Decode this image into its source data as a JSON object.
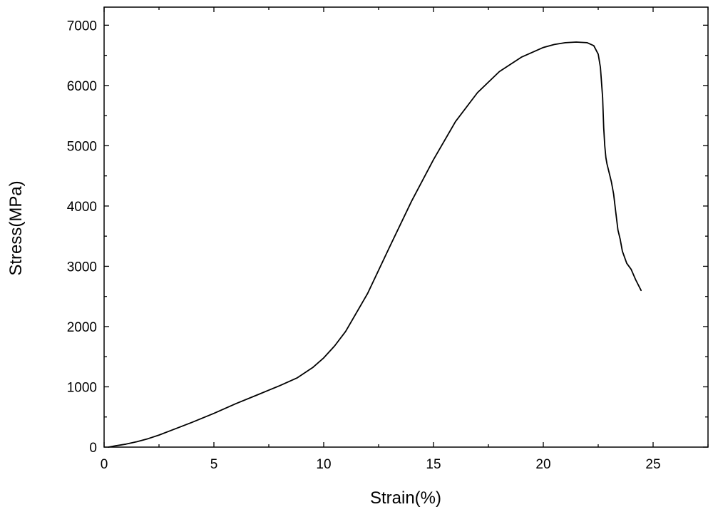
{
  "chart_data": {
    "type": "line",
    "title": "",
    "xlabel": "Strain(%)",
    "ylabel": "Stress(MPa)",
    "xlim": [
      0,
      27.5
    ],
    "ylim": [
      0,
      7300
    ],
    "xticks": [
      0,
      5,
      10,
      15,
      20,
      25
    ],
    "yticks": [
      0,
      1000,
      2000,
      3000,
      4000,
      5000,
      6000,
      7000
    ],
    "grid": false,
    "legend": "none",
    "line_color": "#000000",
    "series": [
      {
        "x": [
          0.2,
          0.5,
          1.0,
          1.5,
          2.0,
          2.5,
          3.0,
          4.0,
          5.0,
          6.0,
          7.0,
          8.0,
          8.8,
          9.5,
          10.0,
          10.5,
          11.0,
          12.0,
          13.0,
          14.0,
          15.0,
          16.0,
          17.0,
          18.0,
          19.0,
          20.0,
          20.5,
          21.0,
          21.5,
          22.0,
          22.3,
          22.5,
          22.6,
          22.7,
          22.75,
          22.8,
          22.85,
          22.9,
          23.0,
          23.1,
          23.2,
          23.3,
          23.4,
          23.5,
          23.6,
          23.8,
          24.0,
          24.2,
          24.45
        ],
        "y": [
          0,
          20,
          50,
          90,
          140,
          200,
          270,
          410,
          560,
          720,
          870,
          1020,
          1150,
          1320,
          1480,
          1680,
          1920,
          2550,
          3320,
          4080,
          4770,
          5400,
          5880,
          6230,
          6470,
          6630,
          6680,
          6710,
          6720,
          6710,
          6660,
          6520,
          6300,
          5800,
          5300,
          5000,
          4800,
          4700,
          4550,
          4400,
          4200,
          3900,
          3600,
          3450,
          3250,
          3050,
          2950,
          2780,
          2600
        ]
      }
    ]
  }
}
